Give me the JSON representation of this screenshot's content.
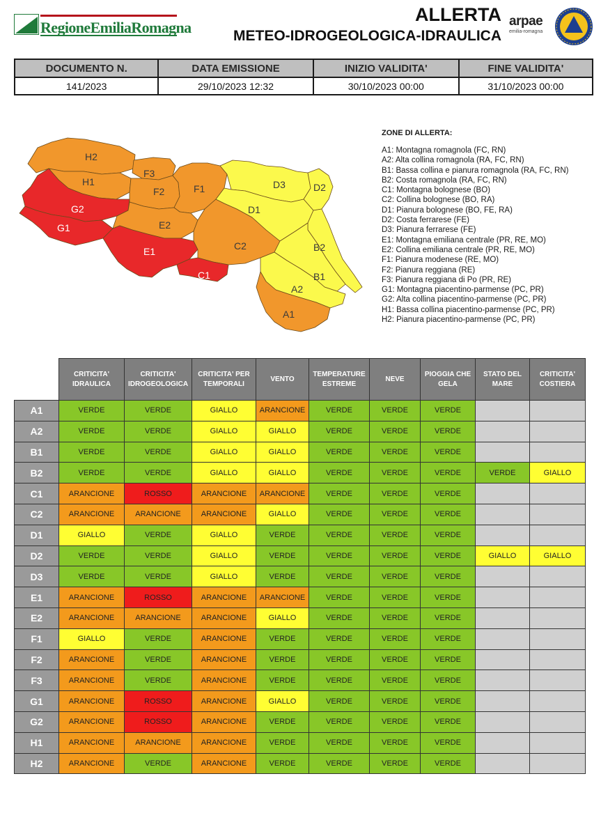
{
  "header": {
    "org_name": "RegioneEmiliaRomagna",
    "title_line1": "ALLERTA",
    "title_line2": "METEO-IDROGEOLOGICA-IDRAULICA",
    "arpae_name": "arpae",
    "arpae_sub": "emilia-romagna",
    "pc_logo": "protezione-civile-logo"
  },
  "info_table": {
    "headers": [
      "DOCUMENTO N.",
      "DATA EMISSIONE",
      "INIZIO VALIDITA'",
      "FINE VALIDITA'"
    ],
    "values": [
      "141/2023",
      "29/10/2023 12:32",
      "30/10/2023 00:00",
      "31/10/2023 00:00"
    ]
  },
  "map": {
    "zone_labels": [
      "H2",
      "H1",
      "G2",
      "G1",
      "F3",
      "F2",
      "F1",
      "E2",
      "E1",
      "C2",
      "C1",
      "D3",
      "D2",
      "D1",
      "B2",
      "B1",
      "A2",
      "A1"
    ],
    "colors": {
      "red": "#e8282a",
      "orange": "#f1972c",
      "yellow": "#fbf94c"
    }
  },
  "legend": {
    "title": "ZONE DI ALLERTA:",
    "items": [
      "A1: Montagna romagnola (FC, RN)",
      "A2: Alta collina romagnola (RA, FC, RN)",
      "B1: Bassa collina e pianura romagnola (RA, FC, RN)",
      "B2: Costa romagnola (RA, FC, RN)",
      "C1: Montagna bolognese (BO)",
      "C2: Collina bolognese (BO, RA)",
      "D1: Pianura bolognese (BO, FE, RA)",
      "D2: Costa ferrarese (FE)",
      "D3: Pianura ferrarese (FE)",
      "E1: Montagna emiliana centrale (PR, RE, MO)",
      "E2: Collina emiliana centrale (PR, RE, MO)",
      "F1: Pianura modenese (RE, MO)",
      "F2: Pianura reggiana (RE)",
      "F3: Pianura reggiana di Po (PR, RE)",
      "G1: Montagna piacentino-parmense (PC, PR)",
      "G2: Alta collina piacentino-parmense (PC, PR)",
      "H1: Bassa collina piacentino-parmense (PC, PR)",
      "H2: Pianura piacentino-parmense (PC, PR)"
    ]
  },
  "alert_table": {
    "columns": [
      [
        "CRITICITA'",
        "IDRAULICA"
      ],
      [
        "CRITICITA'",
        "IDROGEOLOGICA"
      ],
      [
        "CRITICITA' PER",
        "TEMPORALI"
      ],
      [
        "VENTO"
      ],
      [
        "TEMPERATURE",
        "ESTREME"
      ],
      [
        "NEVE"
      ],
      [
        "PIOGGIA CHE",
        "GELA"
      ],
      [
        "STATO DEL",
        "MARE"
      ],
      [
        "CRITICITA'",
        "COSTIERA"
      ]
    ],
    "rows": [
      {
        "zone": "A1",
        "values": [
          "VERDE",
          "VERDE",
          "GIALLO",
          "ARANCIONE",
          "VERDE",
          "VERDE",
          "VERDE",
          "",
          ""
        ]
      },
      {
        "zone": "A2",
        "values": [
          "VERDE",
          "VERDE",
          "GIALLO",
          "GIALLO",
          "VERDE",
          "VERDE",
          "VERDE",
          "",
          ""
        ]
      },
      {
        "zone": "B1",
        "values": [
          "VERDE",
          "VERDE",
          "GIALLO",
          "GIALLO",
          "VERDE",
          "VERDE",
          "VERDE",
          "",
          ""
        ]
      },
      {
        "zone": "B2",
        "values": [
          "VERDE",
          "VERDE",
          "GIALLO",
          "GIALLO",
          "VERDE",
          "VERDE",
          "VERDE",
          "VERDE",
          "GIALLO"
        ]
      },
      {
        "zone": "C1",
        "values": [
          "ARANCIONE",
          "ROSSO",
          "ARANCIONE",
          "ARANCIONE",
          "VERDE",
          "VERDE",
          "VERDE",
          "",
          ""
        ]
      },
      {
        "zone": "C2",
        "values": [
          "ARANCIONE",
          "ARANCIONE",
          "ARANCIONE",
          "GIALLO",
          "VERDE",
          "VERDE",
          "VERDE",
          "",
          ""
        ]
      },
      {
        "zone": "D1",
        "values": [
          "GIALLO",
          "VERDE",
          "GIALLO",
          "VERDE",
          "VERDE",
          "VERDE",
          "VERDE",
          "",
          ""
        ]
      },
      {
        "zone": "D2",
        "values": [
          "VERDE",
          "VERDE",
          "GIALLO",
          "VERDE",
          "VERDE",
          "VERDE",
          "VERDE",
          "GIALLO",
          "GIALLO"
        ]
      },
      {
        "zone": "D3",
        "values": [
          "VERDE",
          "VERDE",
          "GIALLO",
          "VERDE",
          "VERDE",
          "VERDE",
          "VERDE",
          "",
          ""
        ]
      },
      {
        "zone": "E1",
        "values": [
          "ARANCIONE",
          "ROSSO",
          "ARANCIONE",
          "ARANCIONE",
          "VERDE",
          "VERDE",
          "VERDE",
          "",
          ""
        ]
      },
      {
        "zone": "E2",
        "values": [
          "ARANCIONE",
          "ARANCIONE",
          "ARANCIONE",
          "GIALLO",
          "VERDE",
          "VERDE",
          "VERDE",
          "",
          ""
        ]
      },
      {
        "zone": "F1",
        "values": [
          "GIALLO",
          "VERDE",
          "ARANCIONE",
          "VERDE",
          "VERDE",
          "VERDE",
          "VERDE",
          "",
          ""
        ]
      },
      {
        "zone": "F2",
        "values": [
          "ARANCIONE",
          "VERDE",
          "ARANCIONE",
          "VERDE",
          "VERDE",
          "VERDE",
          "VERDE",
          "",
          ""
        ]
      },
      {
        "zone": "F3",
        "values": [
          "ARANCIONE",
          "VERDE",
          "ARANCIONE",
          "VERDE",
          "VERDE",
          "VERDE",
          "VERDE",
          "",
          ""
        ]
      },
      {
        "zone": "G1",
        "values": [
          "ARANCIONE",
          "ROSSO",
          "ARANCIONE",
          "GIALLO",
          "VERDE",
          "VERDE",
          "VERDE",
          "",
          ""
        ]
      },
      {
        "zone": "G2",
        "values": [
          "ARANCIONE",
          "ROSSO",
          "ARANCIONE",
          "VERDE",
          "VERDE",
          "VERDE",
          "VERDE",
          "",
          ""
        ]
      },
      {
        "zone": "H1",
        "values": [
          "ARANCIONE",
          "ARANCIONE",
          "ARANCIONE",
          "VERDE",
          "VERDE",
          "VERDE",
          "VERDE",
          "",
          ""
        ]
      },
      {
        "zone": "H2",
        "values": [
          "ARANCIONE",
          "VERDE",
          "ARANCIONE",
          "VERDE",
          "VERDE",
          "VERDE",
          "VERDE",
          "",
          ""
        ]
      }
    ],
    "level_colors": {
      "VERDE": "#88c728",
      "GIALLO": "#fffe33",
      "ARANCIONE": "#f39a1c",
      "ROSSO": "#ef1c1c",
      "EMPTY": "#d0d0d0"
    }
  }
}
